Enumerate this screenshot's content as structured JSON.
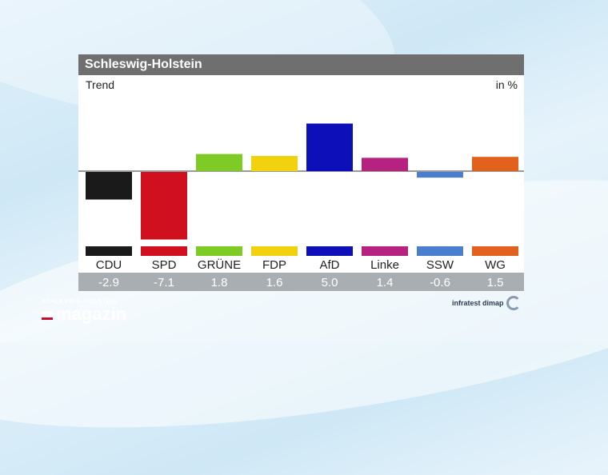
{
  "header": {
    "title": "Schleswig-Holstein",
    "subtitle": "Trend",
    "unit": "in %"
  },
  "branding": {
    "line1": "SCHLESWIG-HOLSTEIN",
    "line2": "magazin"
  },
  "credit": {
    "text": "infratest dimap"
  },
  "chart_data": {
    "type": "bar",
    "title": "Schleswig-Holstein",
    "subtitle": "Trend",
    "ylabel": "in %",
    "categories": [
      "CDU",
      "SPD",
      "GRÜNE",
      "FDP",
      "AfD",
      "Linke",
      "SSW",
      "WG"
    ],
    "values_label": [
      "-2.9",
      "-7.1",
      "1.8",
      "1.6",
      "5.0",
      "1.4",
      "-0.6",
      "1.5"
    ],
    "values": [
      -2.9,
      -7.1,
      1.8,
      1.6,
      5.0,
      1.4,
      -0.6,
      1.5
    ],
    "colors": [
      "#1a1a1a",
      "#d0101e",
      "#7ecb25",
      "#f2d10e",
      "#0d10b8",
      "#b5227f",
      "#4a7fcf",
      "#e2611e"
    ],
    "ylim": [
      -7.1,
      5.0
    ],
    "grid": false
  }
}
